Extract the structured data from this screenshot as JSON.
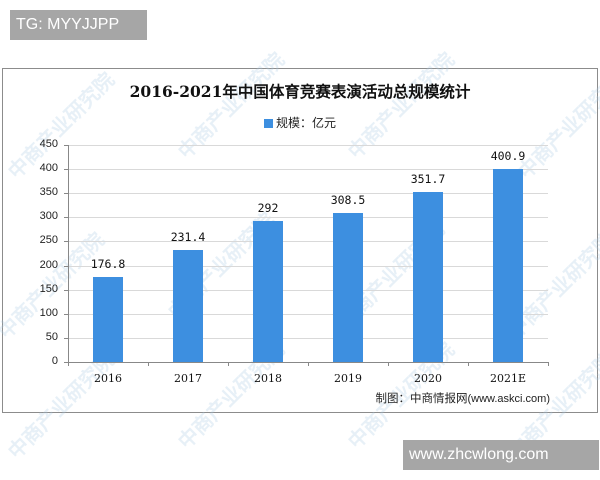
{
  "overlay": {
    "top_tag": "TG: MYYJJPP",
    "bottom_tag": "www.zhcwlong.com"
  },
  "chart": {
    "title": "2016-2021年中国体育竞赛表演活动总规模统计",
    "legend_label": "规模：亿元",
    "source_prefix": "制图：中商情报网",
    "source_url": "(www.askci.com)",
    "watermark": "中商产业研究院",
    "bar_color": "#3d8fe0"
  },
  "chart_data": {
    "type": "bar",
    "title": "2016-2021年中国体育竞赛表演活动总规模统计",
    "xlabel": "",
    "ylabel": "",
    "categories": [
      "2016",
      "2017",
      "2018",
      "2019",
      "2020",
      "2021E"
    ],
    "series": [
      {
        "name": "规模：亿元",
        "values": [
          176.8,
          231.4,
          292,
          308.5,
          351.7,
          400.9
        ]
      }
    ],
    "value_labels": [
      "176.8",
      "231.4",
      "292",
      "308.5",
      "351.7",
      "400.9"
    ],
    "yticks": [
      0,
      50,
      100,
      150,
      200,
      250,
      300,
      350,
      400,
      450
    ],
    "ylim": [
      0,
      450
    ],
    "grid": true,
    "legend_position": "top-center",
    "source": "制图：中商情报网(www.askci.com)"
  }
}
